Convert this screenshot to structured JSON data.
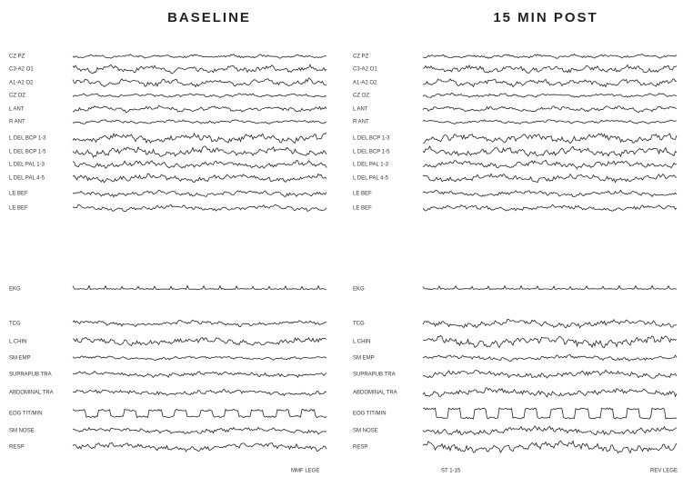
{
  "panels": [
    {
      "title": "BASELINE",
      "channels": [
        "CZ PZ",
        "C3-A2 O1",
        "A1-A2 O2",
        "CZ OZ",
        "L ANT",
        "R ANT",
        "L DEL BCP 1-3",
        "L DEL BCP 1-5",
        "L DEL PAL 1-3",
        "L DEL PAL 4-5",
        "LE BEF",
        "LE BEF",
        "EKG",
        "TCG",
        "L CHIN",
        "SM EMP",
        "SUPRAPUB TRA",
        "ABDOMINAL TRA",
        "EOG TIT/MIN",
        "SM NOSE",
        "RESP"
      ],
      "footer": [
        "MMF LEGE"
      ]
    },
    {
      "title": "15 MIN POST",
      "channels": [
        "CZ PZ",
        "C3-A2 O1",
        "A1-A2 O2",
        "CZ OZ",
        "L ANT",
        "R ANT",
        "L DEL BCP 1-3",
        "L DEL BCP 1-5",
        "L DEL PAL 1-3",
        "L DEL PAL 4-5",
        "LE BEF",
        "LE BEF",
        "EKG",
        "TCG",
        "L CHIN",
        "SM EMP",
        "SUPRAPUB TRA",
        "ABDOMINAL TRA",
        "EOG TIT/MIN",
        "SM NOSE",
        "RESP"
      ],
      "footer": [
        "ST 1-15",
        "REV LEGE"
      ]
    }
  ]
}
